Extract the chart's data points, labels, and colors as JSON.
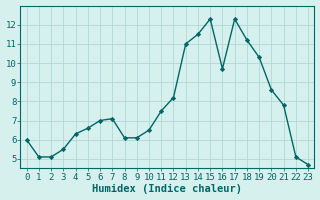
{
  "x": [
    0,
    1,
    2,
    3,
    4,
    5,
    6,
    7,
    8,
    9,
    10,
    11,
    12,
    13,
    14,
    15,
    16,
    17,
    18,
    19,
    20,
    21,
    22,
    23
  ],
  "y": [
    6.0,
    5.1,
    5.1,
    5.5,
    6.3,
    6.6,
    7.0,
    7.1,
    6.1,
    6.1,
    6.5,
    7.5,
    8.2,
    11.0,
    11.5,
    12.3,
    9.7,
    12.3,
    11.2,
    10.3,
    8.6,
    7.8,
    5.1,
    4.7
  ],
  "xlabel": "Humidex (Indice chaleur)",
  "line_color": "#006666",
  "marker": "D",
  "marker_size": 2.2,
  "bg_color": "#d6f0ee",
  "grid_color": "#b0d8d4",
  "xlim": [
    -0.5,
    23.5
  ],
  "ylim": [
    4.5,
    13.0
  ],
  "yticks": [
    5,
    6,
    7,
    8,
    9,
    10,
    11,
    12
  ],
  "xticks": [
    0,
    1,
    2,
    3,
    4,
    5,
    6,
    7,
    8,
    9,
    10,
    11,
    12,
    13,
    14,
    15,
    16,
    17,
    18,
    19,
    20,
    21,
    22,
    23
  ],
  "linewidth": 1.0,
  "xlabel_fontsize": 7.5,
  "tick_fontsize": 6.5
}
